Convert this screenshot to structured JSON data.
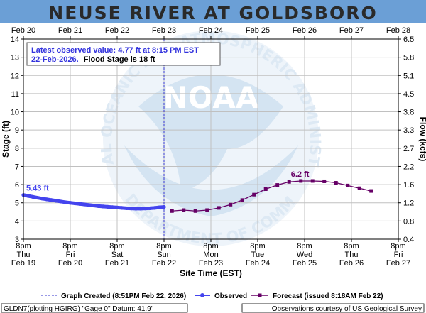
{
  "chart_data": {
    "type": "line",
    "title": "NEUSE RIVER AT GOLDSBORO",
    "xlabel": "Site Time (EST)",
    "ylabel": "Stage (ft)",
    "ylabel_right": "Flow (kcfs)",
    "ylim": [
      3,
      14
    ],
    "y_ticks": [
      "3",
      "4",
      "5",
      "6",
      "7",
      "8",
      "9",
      "10",
      "11",
      "12",
      "13",
      "14"
    ],
    "y_right_ticks": [
      "0.4",
      "0.8",
      "1.2",
      "1.6",
      "2.2",
      "2.7",
      "3.3",
      "3.8",
      "4.5",
      "5.1",
      "5.8",
      "6.5"
    ],
    "top_ticks": [
      "Feb 20",
      "Feb 21",
      "Feb 22",
      "Feb 23",
      "Feb 24",
      "Feb 25",
      "Feb 26",
      "Feb 27",
      "Feb 28"
    ],
    "bottom_ticks": [
      {
        "time": "8pm",
        "day": "Thu",
        "date": "Feb 19"
      },
      {
        "time": "8pm",
        "day": "Fri",
        "date": "Feb 20"
      },
      {
        "time": "8pm",
        "day": "Sat",
        "date": "Feb 21"
      },
      {
        "time": "8pm",
        "day": "Sun",
        "date": "Feb 22"
      },
      {
        "time": "8pm",
        "day": "Mon",
        "date": "Feb 23"
      },
      {
        "time": "8pm",
        "day": "Tue",
        "date": "Feb 24"
      },
      {
        "time": "8pm",
        "day": "Wed",
        "date": "Feb 25"
      },
      {
        "time": "8pm",
        "day": "Thu",
        "date": "Feb 26"
      },
      {
        "time": "8pm",
        "day": "Fri",
        "date": "Feb 27"
      }
    ],
    "x_range_days": [
      0,
      8
    ],
    "grid": true,
    "created_marker_day": 3.0,
    "series": [
      {
        "name": "Observed",
        "color": "#4444ee",
        "x_days": [
          0.0,
          0.1,
          0.2,
          0.3,
          0.4,
          0.5,
          0.6,
          0.7,
          0.8,
          0.9,
          1.0,
          1.1,
          1.2,
          1.3,
          1.4,
          1.5,
          1.6,
          1.7,
          1.8,
          1.9,
          2.0,
          2.1,
          2.2,
          2.3,
          2.4,
          2.5,
          2.6,
          2.7,
          2.8,
          2.9,
          3.0
        ],
        "y": [
          5.43,
          5.38,
          5.33,
          5.28,
          5.23,
          5.19,
          5.15,
          5.11,
          5.07,
          5.03,
          5.0,
          4.97,
          4.94,
          4.91,
          4.88,
          4.85,
          4.82,
          4.8,
          4.78,
          4.76,
          4.74,
          4.72,
          4.7,
          4.69,
          4.68,
          4.68,
          4.69,
          4.7,
          4.72,
          4.75,
          4.77
        ]
      },
      {
        "name": "Forecast (issued 8:18AM Feb 22)",
        "color": "#660066",
        "x_days": [
          3.17,
          3.42,
          3.67,
          3.92,
          4.17,
          4.42,
          4.67,
          4.92,
          5.17,
          5.42,
          5.67,
          5.92,
          6.17,
          6.42,
          6.67,
          6.92,
          7.17,
          7.42
        ],
        "y": [
          4.55,
          4.6,
          4.55,
          4.6,
          4.72,
          4.9,
          5.15,
          5.45,
          5.75,
          5.98,
          6.15,
          6.2,
          6.2,
          6.18,
          6.1,
          5.95,
          5.8,
          5.65
        ]
      }
    ],
    "annotations": {
      "obs_label": "5.43 ft",
      "fcst_label": "6.2 ft",
      "latest_line1": "Latest observed value: 4.77 ft at 8:15 PM EST",
      "latest_date": "22-Feb-2026.",
      "latest_stage": "Flood Stage is 18 ft"
    },
    "legend": {
      "created": "Graph Created (8:51PM Feb 22, 2026)",
      "observed": "Observed",
      "forecast": "Forecast (issued 8:18AM Feb 22)"
    },
    "footer": {
      "left": "GLDN7(plotting HGIRG) \"Gage 0\" Datum: 41.9'",
      "right": "Observations courtesy of US Geological Survey"
    },
    "watermark_text": "NATIONAL OCEANIC AND ATMOSPHERIC ADMINISTRATION",
    "watermark_bottom": "U.S. DEPARTMENT OF COMMERCE",
    "watermark_logo": "NOAA",
    "colors": {
      "title_bg": "#6b9fd6",
      "plot_border": "#000000",
      "grid": "#c0c0c0",
      "created_line": "#3333cc",
      "watermark": "#d7e6f3"
    }
  }
}
